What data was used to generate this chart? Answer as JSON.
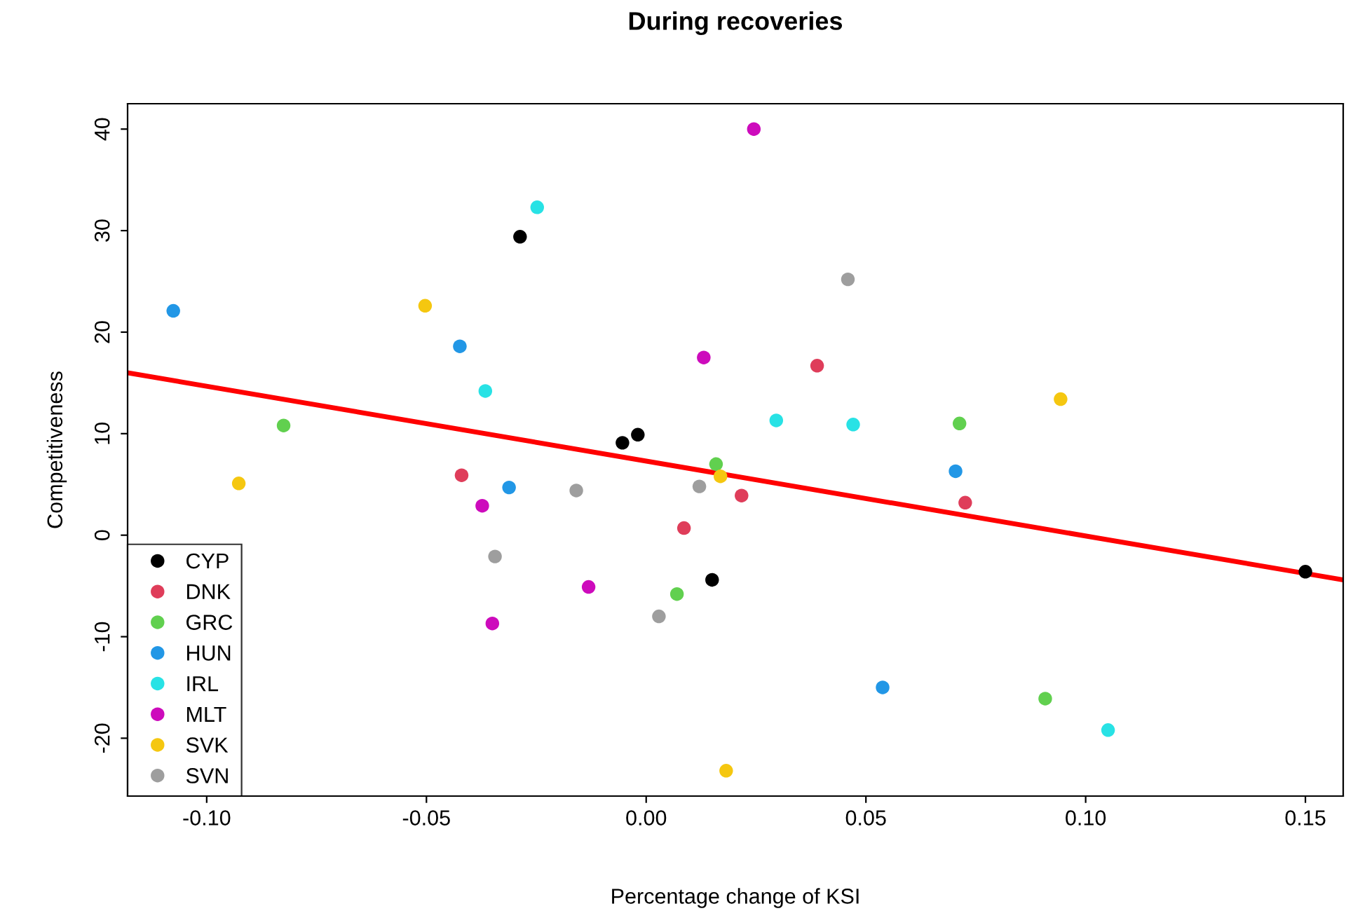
{
  "chart_data": {
    "type": "scatter",
    "title": "During recoveries",
    "xlabel": "Percentage change of KSI",
    "ylabel": "Competitiveness",
    "xlim": [
      -0.118,
      0.1586
    ],
    "ylim": [
      -25.7,
      42.5
    ],
    "xticks": [
      {
        "value": -0.1,
        "label": "-0.10"
      },
      {
        "value": -0.05,
        "label": "-0.05"
      },
      {
        "value": 0,
        "label": "0.00"
      },
      {
        "value": 0.05,
        "label": "0.05"
      },
      {
        "value": 0.1,
        "label": "0.10"
      },
      {
        "value": 0.15,
        "label": "0.15"
      }
    ],
    "yticks": [
      {
        "value": -20,
        "label": "-20"
      },
      {
        "value": -10,
        "label": "-10"
      },
      0,
      10,
      20,
      30,
      40
    ],
    "grid": false,
    "legend": "bottom left",
    "marker": "circle",
    "series": [
      {
        "name": "CYP",
        "color": "#000000",
        "x": [
          -0.0287,
          -0.0054,
          -0.0019,
          0.015,
          0.15
        ],
        "values": [
          29.4,
          9.1,
          9.9,
          -4.4,
          -3.6
        ]
      },
      {
        "name": "DNK",
        "color": "#df3d5a",
        "x": [
          -0.042,
          0.0086,
          0.0217,
          0.0389,
          0.0726
        ],
        "values": [
          5.9,
          0.7,
          3.9,
          16.7,
          3.2
        ]
      },
      {
        "name": "GRC",
        "color": "#61d04f",
        "x": [
          -0.0825,
          0.0159,
          0.007,
          0.0713,
          0.0908
        ],
        "values": [
          10.8,
          7.0,
          -5.8,
          11.0,
          -16.1
        ]
      },
      {
        "name": "HUN",
        "color": "#2297e6",
        "x": [
          -0.1076,
          -0.0424,
          -0.0312,
          0.0704,
          0.0538
        ],
        "values": [
          22.1,
          18.6,
          4.7,
          6.3,
          -15.0
        ]
      },
      {
        "name": "IRL",
        "color": "#28e2e5",
        "x": [
          -0.0248,
          -0.0366,
          0.0296,
          0.0471,
          0.1051
        ],
        "values": [
          32.3,
          14.2,
          11.3,
          10.9,
          -19.2
        ]
      },
      {
        "name": "MLT",
        "color": "#cd0bbc",
        "x": [
          0.0245,
          0.0131,
          -0.0373,
          -0.0131,
          -0.035
        ],
        "values": [
          40.0,
          17.5,
          2.9,
          -5.1,
          -8.7
        ]
      },
      {
        "name": "SVK",
        "color": "#f5c710",
        "x": [
          -0.0503,
          -0.0927,
          0.0169,
          0.0943,
          0.0182
        ],
        "values": [
          22.6,
          5.1,
          5.8,
          13.4,
          -23.2
        ]
      },
      {
        "name": "SVN",
        "color": "#9e9e9e",
        "x": [
          0.0459,
          -0.0159,
          0.0121,
          -0.0344,
          0.0029
        ],
        "values": [
          25.2,
          4.4,
          4.8,
          -2.1,
          -8.0
        ]
      },
      {
        "type": "line",
        "marker": "none",
        "color": "#ff0000",
        "x": [
          -0.118,
          0.1586
        ],
        "values": [
          16.0,
          -4.4
        ]
      }
    ]
  }
}
